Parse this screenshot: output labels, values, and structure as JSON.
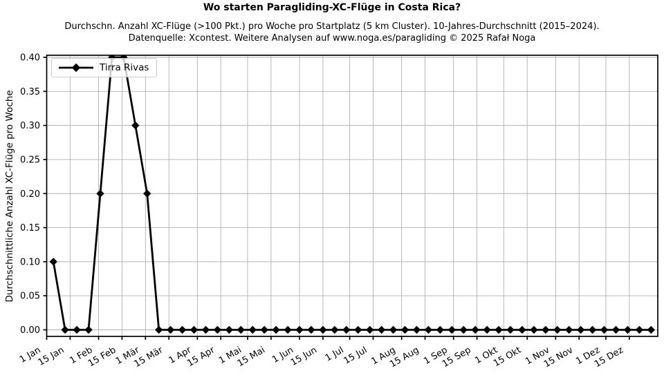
{
  "chart_data": {
    "type": "line",
    "title": "Wo starten Paragliding-XC-Flüge in Costa Rica?",
    "subtitle_line1": "Durchschn. Anzahl XC-Flüge (>100 Pkt.) pro Woche pro Startplatz (5 km Cluster). 10-Jahres-Durchschnitt (2015–2024).",
    "subtitle_line2": "Datenquelle: Xcontest. Weitere Analysen auf www.noga.es/paragliding © 2025 Rafał Noga",
    "xlabel": "",
    "ylabel": "Durchschnittliche Anzahl XC-Flüge pro Woche",
    "legend": {
      "position": "upper left",
      "entries": [
        "Tirra Rivas"
      ]
    },
    "grid": true,
    "colors": {
      "line": "#000000",
      "grid": "#b0b0b0",
      "axes": "#000000",
      "background": "#ffffff",
      "legend_border": "#cccccc"
    },
    "x_axis": {
      "unit": "day_of_year",
      "xlim": [
        0,
        365
      ],
      "tick_days": [
        0,
        14,
        31,
        45,
        59,
        73,
        90,
        104,
        120,
        134,
        151,
        165,
        181,
        195,
        212,
        226,
        243,
        257,
        273,
        287,
        304,
        318,
        334,
        348
      ],
      "tick_labels": [
        "1 Jan",
        "15 Jan",
        "1 Feb",
        "15 Feb",
        "1 Mär",
        "15 Mär",
        "1 Apr",
        "15 Apr",
        "1 Mai",
        "15 Mai",
        "1 Jun",
        "15 Jun",
        "1 Jul",
        "15 Jul",
        "1 Aug",
        "15 Aug",
        "1 Sep",
        "15 Sep",
        "1 Okt",
        "15 Okt",
        "1 Nov",
        "15 Nov",
        "1 Dez",
        "15 Dez"
      ]
    },
    "y_axis": {
      "ylim": [
        0,
        0.4
      ],
      "tick_values": [
        0,
        0.05,
        0.1,
        0.15,
        0.2,
        0.25,
        0.3,
        0.35,
        0.4
      ],
      "tick_labels": [
        "0.00",
        "0.05",
        "0.10",
        "0.15",
        "0.20",
        "0.25",
        "0.30",
        "0.35",
        "0.40"
      ]
    },
    "series": [
      {
        "name": "Tirra Rivas",
        "marker": "diamond",
        "color": "#000000",
        "start_day_of_year": 4,
        "step_days": 7,
        "values": [
          0.1,
          0,
          0,
          0,
          0.2,
          0.4,
          0.4,
          0.3,
          0.2,
          0,
          0,
          0,
          0,
          0,
          0,
          0,
          0,
          0,
          0,
          0,
          0,
          0,
          0,
          0,
          0,
          0,
          0,
          0,
          0,
          0,
          0,
          0,
          0,
          0,
          0,
          0,
          0,
          0,
          0,
          0,
          0,
          0,
          0,
          0,
          0,
          0,
          0,
          0,
          0,
          0,
          0,
          0
        ]
      }
    ]
  }
}
